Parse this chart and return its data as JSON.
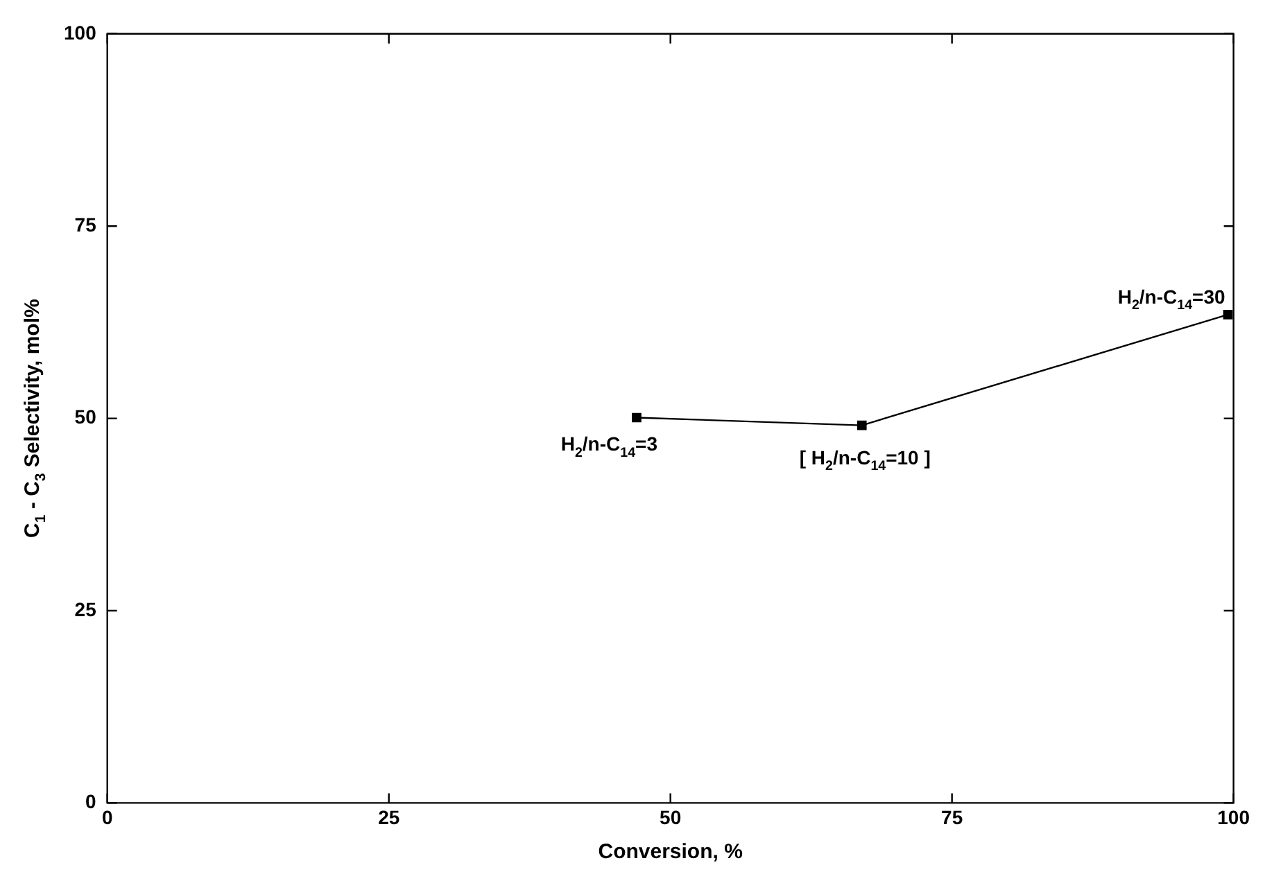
{
  "chart_data": {
    "type": "line",
    "xlabel": "Conversion, %",
    "ylabel": "C$_{1}$ - C$_{3}$ Selectivity, mol%",
    "x": [
      47,
      67,
      99.5
    ],
    "series": [
      {
        "color": "#000000",
        "values": [
          50.1,
          49.1,
          63.5
        ]
      }
    ],
    "xlim": [
      0,
      100
    ],
    "xticks": [
      0,
      25,
      50,
      75,
      100
    ],
    "ylim": [
      0,
      100
    ],
    "yticks": [
      0,
      25,
      50,
      75,
      100
    ],
    "marker": "square",
    "line_style": "solid",
    "grid": false,
    "legend": false,
    "annotations": [
      {
        "text": "H$_{2}$/n-C$_{14}$=3",
        "x": 47,
        "y": 50.1
      },
      {
        "text": "[ H$_{2}$/n-C$_{14}$=10 ]",
        "x": 67,
        "y": 49.1
      },
      {
        "text": "H$_{2}$/n-C$_{14}$=30",
        "x": 99.5,
        "y": 63.5
      }
    ]
  }
}
